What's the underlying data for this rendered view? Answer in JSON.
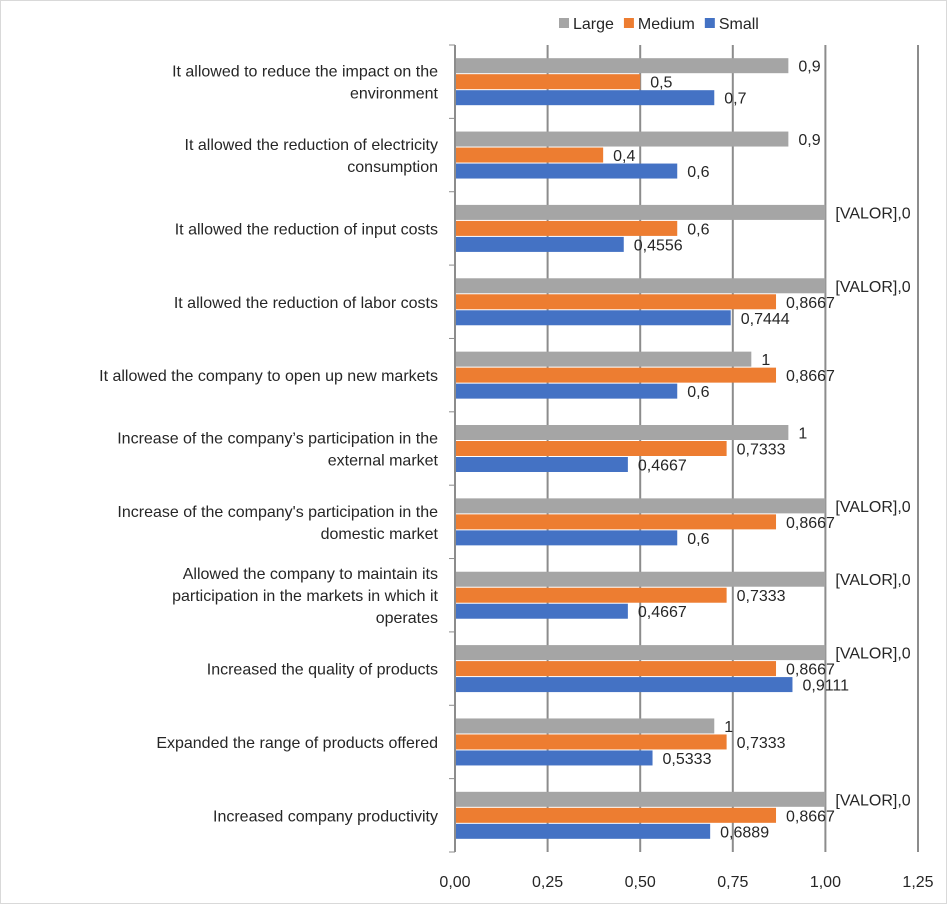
{
  "chart_data": {
    "type": "bar",
    "orientation": "horizontal",
    "title": "",
    "xlabel": "",
    "ylabel": "",
    "xlim": [
      0,
      1.25
    ],
    "x_ticks": [
      "0,00",
      "0,25",
      "0,50",
      "0,75",
      "1,00",
      "1,25"
    ],
    "x_tick_values": [
      0,
      0.25,
      0.5,
      0.75,
      1.0,
      1.25
    ],
    "grid": "vertical",
    "legend_position": "top",
    "categories": [
      "It allowed to reduce the impact on the environment",
      "It allowed the reduction of electricity consumption",
      "It allowed the reduction of input costs",
      "It allowed the reduction of labor costs",
      "It allowed the company to open up new markets",
      "Increase of the company’s participation in the external market",
      "Increase of the company's participation in the domestic market",
      "Allowed the company to maintain its participation in the markets in which it operates",
      "Increased the quality of products",
      "Expanded the range of products offered",
      "Increased company productivity"
    ],
    "series": [
      {
        "name": "Large",
        "color": "#A5A5A5",
        "values": [
          0.9,
          0.9,
          1.0,
          1.0,
          0.8,
          0.9,
          1.0,
          1.0,
          1.0,
          0.7,
          1.0
        ],
        "labels": [
          "0,9",
          "0,9",
          "[VALOR],0",
          "[VALOR],0",
          "1",
          "1",
          "[VALOR],0",
          "[VALOR],0",
          "[VALOR],0",
          "1",
          "[VALOR],0"
        ]
      },
      {
        "name": "Medium",
        "color": "#ED7D31",
        "values": [
          0.5,
          0.4,
          0.6,
          0.8667,
          0.8667,
          0.7333,
          0.8667,
          0.7333,
          0.8667,
          0.7333,
          0.8667
        ],
        "labels": [
          "0,5",
          "0,4",
          "0,6",
          "0,8667",
          "0,8667",
          "0,7333",
          "0,8667",
          "0,7333",
          "0,8667",
          "0,7333",
          "0,8667"
        ]
      },
      {
        "name": "Small",
        "color": "#4472C4",
        "values": [
          0.7,
          0.6,
          0.4556,
          0.7444,
          0.6,
          0.4667,
          0.6,
          0.4667,
          0.9111,
          0.5333,
          0.6889
        ],
        "labels": [
          "0,7",
          "0,6",
          "0,4556",
          "0,7444",
          "0,6",
          "0,4667",
          "0,6",
          "0,4667",
          "0,9111",
          "0,5333",
          "0,6889"
        ]
      }
    ]
  }
}
